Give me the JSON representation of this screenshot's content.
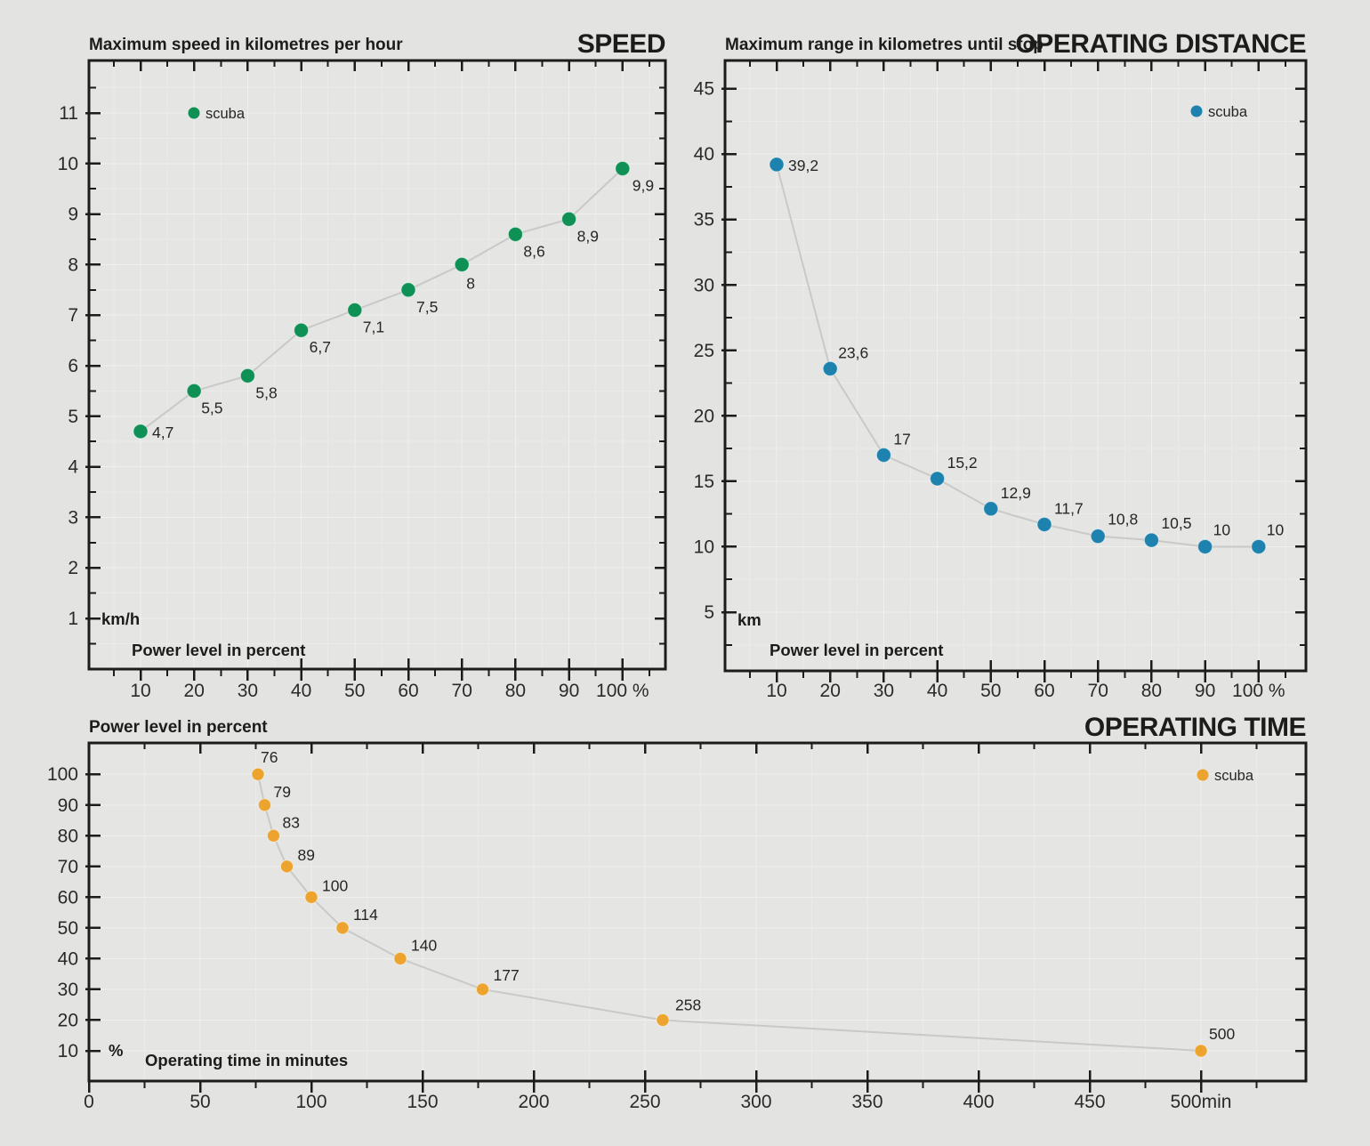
{
  "page": {
    "background": "#e3e3e2",
    "axis_color": "#1c1c1a",
    "line_color": "#c9c9c7",
    "grid_major_color": "#f0f0ee",
    "grid_minor_color": "#ebebea",
    "plot_background": "#e5e5e4"
  },
  "chart_data": [
    {
      "type": "scatter",
      "title": "SPEED",
      "subtitle": "Maximum speed in kilometres per hour",
      "xlabel": "Power level in percent",
      "y_unit_label": "km/h",
      "legend": "scuba",
      "legend_position": "top-left-in-plot",
      "point_color": "#0f9156",
      "x": [
        10,
        20,
        30,
        40,
        50,
        60,
        70,
        80,
        90,
        100
      ],
      "y": [
        4.7,
        5.5,
        5.8,
        6.7,
        7.1,
        7.5,
        8.0,
        8.6,
        8.9,
        9.9
      ],
      "point_labels": [
        "4,7",
        "5,5",
        "5,8",
        "6,7",
        "7,1",
        "7,5",
        "8",
        "8,6",
        "8,9",
        "9,9"
      ],
      "x_ticks": [
        10,
        20,
        30,
        40,
        50,
        60,
        70,
        80,
        90,
        100
      ],
      "x_tick_labels": [
        "10",
        "20",
        "30",
        "40",
        "50",
        "60",
        "70",
        "80",
        "90",
        "100 %"
      ],
      "y_ticks": [
        1,
        2,
        3,
        4,
        5,
        6,
        7,
        8,
        9,
        10,
        11
      ],
      "y_tick_labels": [
        "1",
        "2",
        "3",
        "4",
        "5",
        "6",
        "7",
        "8",
        "9",
        "10",
        "11"
      ],
      "xlim": [
        0,
        108
      ],
      "ylim": [
        0,
        12
      ],
      "grid": true
    },
    {
      "type": "scatter",
      "title": "OPERATING DISTANCE",
      "subtitle": "Maximum range in kilometres until stop",
      "xlabel": "Power level in percent",
      "y_unit_label": "km",
      "legend": "scuba",
      "legend_position": "top-right-in-plot",
      "point_color": "#1e82ae",
      "x": [
        10,
        20,
        30,
        40,
        50,
        60,
        70,
        80,
        90,
        100
      ],
      "y": [
        39.2,
        23.6,
        17,
        15.2,
        12.9,
        11.7,
        10.8,
        10.5,
        10,
        10
      ],
      "point_labels": [
        "39,2",
        "23,6",
        "17",
        "15,2",
        "12,9",
        "11,7",
        "10,8",
        "10,5",
        "10",
        "10"
      ],
      "x_ticks": [
        10,
        20,
        30,
        40,
        50,
        60,
        70,
        80,
        90,
        100
      ],
      "x_tick_labels": [
        "10",
        "20",
        "30",
        "40",
        "50",
        "60",
        "70",
        "80",
        "90",
        "100 %"
      ],
      "y_ticks": [
        5,
        10,
        15,
        20,
        25,
        30,
        35,
        40,
        45
      ],
      "y_tick_labels": [
        "5",
        "10",
        "15",
        "20",
        "25",
        "30",
        "35",
        "40",
        "45"
      ],
      "xlim": [
        0,
        108
      ],
      "ylim": [
        0,
        47.5
      ],
      "grid": true
    },
    {
      "type": "scatter",
      "title": "OPERATING TIME",
      "subtitle": "Power level in percent",
      "xlabel": "Operating time in minutes",
      "y_unit_label": "%",
      "legend": "scuba",
      "legend_position": "top-right-in-plot",
      "point_color": "#eda42f",
      "x": [
        76,
        79,
        83,
        89,
        100,
        114,
        140,
        177,
        258,
        500
      ],
      "y": [
        100,
        90,
        80,
        70,
        60,
        50,
        40,
        30,
        20,
        10
      ],
      "point_labels": [
        "76",
        "79",
        "83",
        "89",
        "100",
        "114",
        "140",
        "177",
        "258",
        "500"
      ],
      "x_ticks": [
        0,
        50,
        100,
        150,
        200,
        250,
        300,
        350,
        400,
        450,
        500
      ],
      "x_tick_labels": [
        "0",
        "50",
        "100",
        "150",
        "200",
        "250",
        "300",
        "350",
        "400",
        "450",
        "500min"
      ],
      "y_ticks": [
        10,
        20,
        30,
        40,
        50,
        60,
        70,
        80,
        90,
        100
      ],
      "y_tick_labels": [
        "10",
        "20",
        "30",
        "40",
        "50",
        "60",
        "70",
        "80",
        "90",
        "100"
      ],
      "xlim": [
        0,
        545
      ],
      "ylim": [
        0,
        110
      ],
      "grid": true
    }
  ]
}
